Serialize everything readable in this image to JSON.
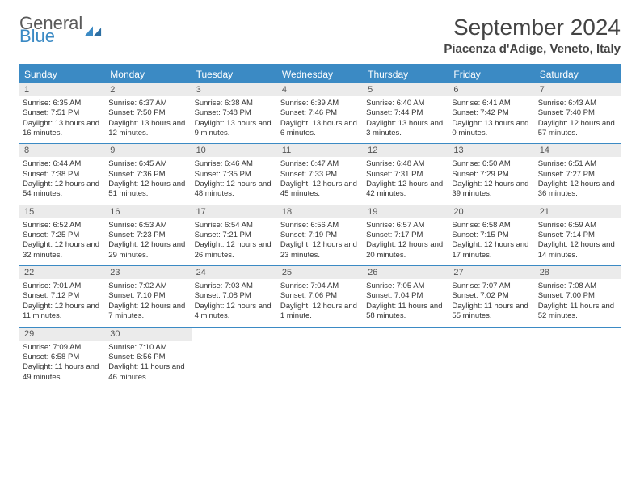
{
  "logo": {
    "line1": "General",
    "line2": "Blue"
  },
  "title": "September 2024",
  "location": "Piacenza d'Adige, Veneto, Italy",
  "colors": {
    "accent": "#3b8ac4",
    "header_bg": "#ebebeb",
    "text": "#333333",
    "bg": "#ffffff"
  },
  "weekdays": [
    "Sunday",
    "Monday",
    "Tuesday",
    "Wednesday",
    "Thursday",
    "Friday",
    "Saturday"
  ],
  "days": [
    {
      "n": "1",
      "sunrise": "6:35 AM",
      "sunset": "7:51 PM",
      "daylight": "13 hours and 16 minutes."
    },
    {
      "n": "2",
      "sunrise": "6:37 AM",
      "sunset": "7:50 PM",
      "daylight": "13 hours and 12 minutes."
    },
    {
      "n": "3",
      "sunrise": "6:38 AM",
      "sunset": "7:48 PM",
      "daylight": "13 hours and 9 minutes."
    },
    {
      "n": "4",
      "sunrise": "6:39 AM",
      "sunset": "7:46 PM",
      "daylight": "13 hours and 6 minutes."
    },
    {
      "n": "5",
      "sunrise": "6:40 AM",
      "sunset": "7:44 PM",
      "daylight": "13 hours and 3 minutes."
    },
    {
      "n": "6",
      "sunrise": "6:41 AM",
      "sunset": "7:42 PM",
      "daylight": "13 hours and 0 minutes."
    },
    {
      "n": "7",
      "sunrise": "6:43 AM",
      "sunset": "7:40 PM",
      "daylight": "12 hours and 57 minutes."
    },
    {
      "n": "8",
      "sunrise": "6:44 AM",
      "sunset": "7:38 PM",
      "daylight": "12 hours and 54 minutes."
    },
    {
      "n": "9",
      "sunrise": "6:45 AM",
      "sunset": "7:36 PM",
      "daylight": "12 hours and 51 minutes."
    },
    {
      "n": "10",
      "sunrise": "6:46 AM",
      "sunset": "7:35 PM",
      "daylight": "12 hours and 48 minutes."
    },
    {
      "n": "11",
      "sunrise": "6:47 AM",
      "sunset": "7:33 PM",
      "daylight": "12 hours and 45 minutes."
    },
    {
      "n": "12",
      "sunrise": "6:48 AM",
      "sunset": "7:31 PM",
      "daylight": "12 hours and 42 minutes."
    },
    {
      "n": "13",
      "sunrise": "6:50 AM",
      "sunset": "7:29 PM",
      "daylight": "12 hours and 39 minutes."
    },
    {
      "n": "14",
      "sunrise": "6:51 AM",
      "sunset": "7:27 PM",
      "daylight": "12 hours and 36 minutes."
    },
    {
      "n": "15",
      "sunrise": "6:52 AM",
      "sunset": "7:25 PM",
      "daylight": "12 hours and 32 minutes."
    },
    {
      "n": "16",
      "sunrise": "6:53 AM",
      "sunset": "7:23 PM",
      "daylight": "12 hours and 29 minutes."
    },
    {
      "n": "17",
      "sunrise": "6:54 AM",
      "sunset": "7:21 PM",
      "daylight": "12 hours and 26 minutes."
    },
    {
      "n": "18",
      "sunrise": "6:56 AM",
      "sunset": "7:19 PM",
      "daylight": "12 hours and 23 minutes."
    },
    {
      "n": "19",
      "sunrise": "6:57 AM",
      "sunset": "7:17 PM",
      "daylight": "12 hours and 20 minutes."
    },
    {
      "n": "20",
      "sunrise": "6:58 AM",
      "sunset": "7:15 PM",
      "daylight": "12 hours and 17 minutes."
    },
    {
      "n": "21",
      "sunrise": "6:59 AM",
      "sunset": "7:14 PM",
      "daylight": "12 hours and 14 minutes."
    },
    {
      "n": "22",
      "sunrise": "7:01 AM",
      "sunset": "7:12 PM",
      "daylight": "12 hours and 11 minutes."
    },
    {
      "n": "23",
      "sunrise": "7:02 AM",
      "sunset": "7:10 PM",
      "daylight": "12 hours and 7 minutes."
    },
    {
      "n": "24",
      "sunrise": "7:03 AM",
      "sunset": "7:08 PM",
      "daylight": "12 hours and 4 minutes."
    },
    {
      "n": "25",
      "sunrise": "7:04 AM",
      "sunset": "7:06 PM",
      "daylight": "12 hours and 1 minute."
    },
    {
      "n": "26",
      "sunrise": "7:05 AM",
      "sunset": "7:04 PM",
      "daylight": "11 hours and 58 minutes."
    },
    {
      "n": "27",
      "sunrise": "7:07 AM",
      "sunset": "7:02 PM",
      "daylight": "11 hours and 55 minutes."
    },
    {
      "n": "28",
      "sunrise": "7:08 AM",
      "sunset": "7:00 PM",
      "daylight": "11 hours and 52 minutes."
    },
    {
      "n": "29",
      "sunrise": "7:09 AM",
      "sunset": "6:58 PM",
      "daylight": "11 hours and 49 minutes."
    },
    {
      "n": "30",
      "sunrise": "7:10 AM",
      "sunset": "6:56 PM",
      "daylight": "11 hours and 46 minutes."
    }
  ],
  "labels": {
    "sunrise": "Sunrise:",
    "sunset": "Sunset:",
    "daylight": "Daylight:"
  },
  "layout": {
    "columns": 7,
    "start_offset": 0,
    "total_cells": 35
  }
}
